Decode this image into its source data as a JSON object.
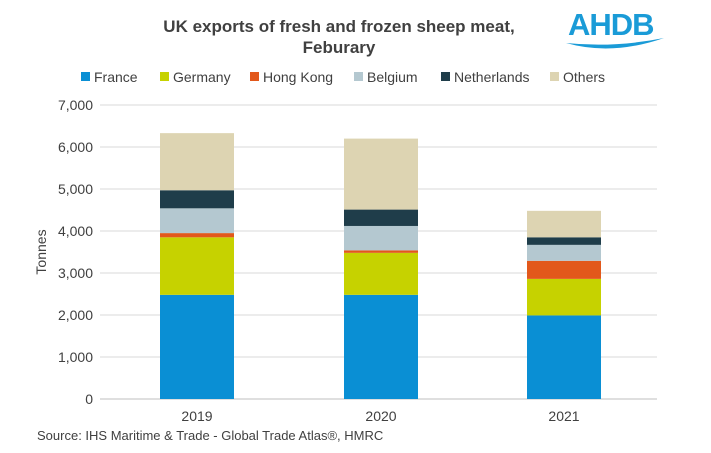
{
  "logo": {
    "text": "AHDB",
    "color": "#1a9bd7"
  },
  "source": "Source: IHS Maritime & Trade - Global Trade Atlas®, HMRC",
  "chart_data": {
    "type": "bar",
    "stacked": true,
    "title": [
      "UK exports of fresh and frozen sheep meat,",
      "Feburary"
    ],
    "xlabel": "",
    "ylabel": "Tonnes",
    "categories": [
      "2019",
      "2020",
      "2021"
    ],
    "ylim": [
      0,
      7000
    ],
    "yticks": [
      0,
      1000,
      2000,
      3000,
      4000,
      5000,
      6000,
      7000
    ],
    "ytick_labels": [
      "0",
      "1,000",
      "2,000",
      "3,000",
      "4,000",
      "5,000",
      "6,000",
      "7,000"
    ],
    "grid": true,
    "legend_position": "top",
    "series": [
      {
        "name": "France",
        "color": "#0a8fd4",
        "values": [
          2480,
          2480,
          1990
        ]
      },
      {
        "name": "Germany",
        "color": "#c6d200",
        "values": [
          1370,
          1000,
          870
        ]
      },
      {
        "name": "Hong Kong",
        "color": "#e2581b",
        "values": [
          100,
          60,
          430
        ]
      },
      {
        "name": "Belgium",
        "color": "#b4c8d0",
        "values": [
          590,
          580,
          380
        ]
      },
      {
        "name": "Netherlands",
        "color": "#1f3d4a",
        "values": [
          430,
          390,
          180
        ]
      },
      {
        "name": "Others",
        "color": "#ddd4b2",
        "values": [
          1360,
          1690,
          630
        ]
      }
    ]
  }
}
